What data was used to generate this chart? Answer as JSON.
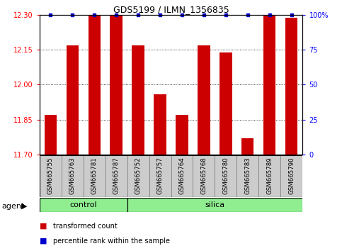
{
  "title": "GDS5199 / ILMN_1356835",
  "samples": [
    "GSM665755",
    "GSM665763",
    "GSM665781",
    "GSM665787",
    "GSM665752",
    "GSM665757",
    "GSM665764",
    "GSM665768",
    "GSM665780",
    "GSM665783",
    "GSM665789",
    "GSM665790"
  ],
  "transformed_count": [
    11.87,
    12.17,
    12.3,
    12.3,
    12.17,
    11.96,
    11.87,
    12.17,
    12.14,
    11.77,
    12.3,
    12.29
  ],
  "ylim_left": [
    11.7,
    12.3
  ],
  "yticks_left": [
    11.7,
    11.85,
    12.0,
    12.15,
    12.3
  ],
  "yticks_right": [
    0,
    25,
    50,
    75,
    100
  ],
  "bar_color": "#cc0000",
  "dot_color": "#0000cc",
  "ctrl_count": 4,
  "sil_count": 8,
  "control_color": "#90ee90",
  "agent_label": "agent",
  "control_label": "control",
  "silica_label": "silica",
  "legend_bar_label": "transformed count",
  "legend_dot_label": "percentile rank within the sample",
  "bar_width": 0.55,
  "label_cell_color": "#cccccc",
  "label_cell_edge": "#888888"
}
